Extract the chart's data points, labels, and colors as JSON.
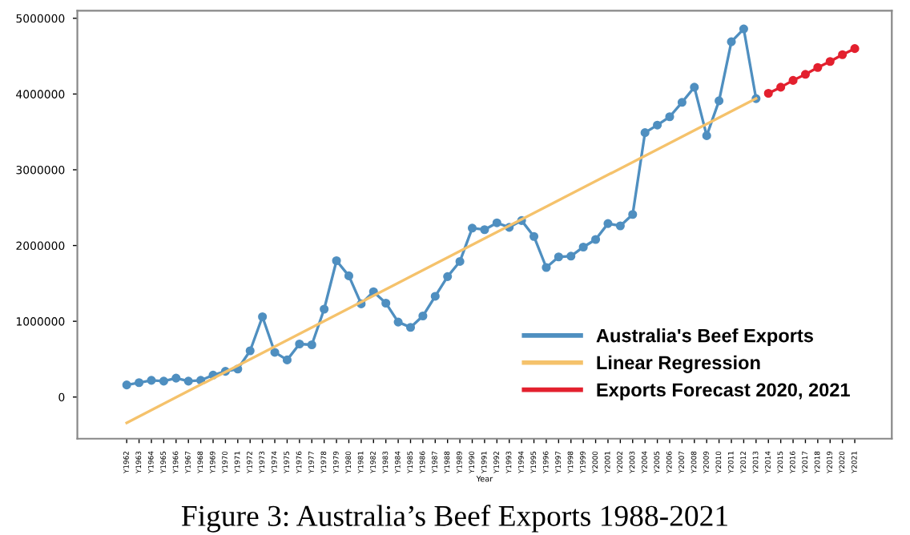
{
  "chart_data": {
    "type": "line",
    "annotations": [
      "Figure 3: Australia’s Beef Exports 1988-2021"
    ],
    "xlabel": "Year",
    "categories": [
      "Y1962",
      "Y1963",
      "Y1964",
      "Y1965",
      "Y1966",
      "Y1967",
      "Y1968",
      "Y1969",
      "Y1970",
      "Y1971",
      "Y1972",
      "Y1973",
      "Y1974",
      "Y1975",
      "Y1976",
      "Y1977",
      "Y1978",
      "Y1979",
      "Y1980",
      "Y1981",
      "Y1982",
      "Y1983",
      "Y1984",
      "Y1985",
      "Y1986",
      "Y1987",
      "Y1988",
      "Y1989",
      "Y1990",
      "Y1991",
      "Y1992",
      "Y1993",
      "Y1994",
      "Y1995",
      "Y1996",
      "Y1997",
      "Y1998",
      "Y1999",
      "Y2000",
      "Y2001",
      "Y2002",
      "Y2003",
      "Y2004",
      "Y2005",
      "Y2006",
      "Y2007",
      "Y2008",
      "Y2009",
      "Y2010",
      "Y2011",
      "Y2012",
      "Y2013",
      "Y2014",
      "Y2015",
      "Y2016",
      "Y2017",
      "Y2018",
      "Y2019",
      "Y2020",
      "Y2021"
    ],
    "series": [
      {
        "name": "Australia's Beef Exports",
        "color": "#4f8fc0",
        "marker": "circle",
        "values": [
          160000,
          190000,
          220000,
          210000,
          250000,
          210000,
          220000,
          290000,
          340000,
          370000,
          610000,
          1060000,
          590000,
          490000,
          700000,
          690000,
          1160000,
          1800000,
          1600000,
          1230000,
          1390000,
          1240000,
          990000,
          920000,
          1070000,
          1330000,
          1590000,
          1790000,
          2230000,
          2210000,
          2300000,
          2240000,
          2330000,
          2120000,
          1710000,
          1850000,
          1860000,
          1980000,
          2080000,
          2290000,
          2260000,
          2410000,
          3490000,
          3590000,
          3700000,
          3890000,
          4090000,
          3450000,
          3910000,
          4690000,
          4860000,
          3940000,
          null,
          null,
          null,
          null,
          null,
          null,
          null,
          null
        ]
      },
      {
        "name": "Linear Regression",
        "color": "#f5c26b",
        "marker": "none",
        "x": [
          "Y1962",
          "Y2013"
        ],
        "values": [
          -340000,
          3940000
        ]
      },
      {
        "name": "Exports Forecast 2020, 2021",
        "color": "#e3202e",
        "marker": "circle",
        "values": [
          null,
          null,
          null,
          null,
          null,
          null,
          null,
          null,
          null,
          null,
          null,
          null,
          null,
          null,
          null,
          null,
          null,
          null,
          null,
          null,
          null,
          null,
          null,
          null,
          null,
          null,
          null,
          null,
          null,
          null,
          null,
          null,
          null,
          null,
          null,
          null,
          null,
          null,
          null,
          null,
          null,
          null,
          null,
          null,
          null,
          null,
          null,
          null,
          null,
          null,
          null,
          null,
          4010000,
          4090000,
          4180000,
          4260000,
          4350000,
          4430000,
          4520000,
          4600000
        ]
      }
    ],
    "ylim": [
      -550000,
      5100000
    ],
    "yticks": [
      0,
      1000000,
      2000000,
      3000000,
      4000000,
      5000000
    ],
    "legend": "bottom right",
    "grid": false,
    "line_style": "solid"
  }
}
